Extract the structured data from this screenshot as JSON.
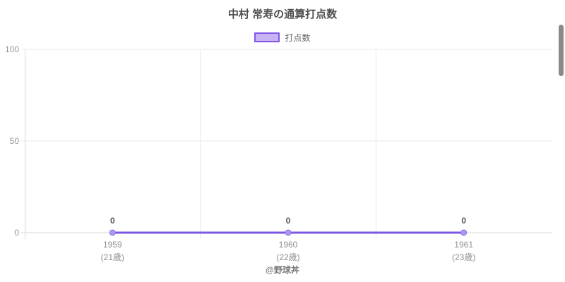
{
  "page": {
    "footer_credit": "@野球丼"
  },
  "chart_data": {
    "type": "line",
    "title": "中村 常寿の通算打点数",
    "categories": [
      "1959",
      "1960",
      "1961"
    ],
    "category_sublabels": [
      "(21歳)",
      "(22歳)",
      "(23歳)"
    ],
    "series": [
      {
        "name": "打点数",
        "values": [
          0,
          0,
          0
        ]
      }
    ],
    "ylim": [
      0,
      100
    ],
    "yticks": [
      0,
      50,
      100
    ],
    "grid": true,
    "legend_position": "top",
    "colors": {
      "line": "#7c57e6",
      "point_fill": "#b097ee",
      "point_border": "#8d6ae9",
      "legend_fill": "#c7b2f4",
      "legend_border": "#8257e5",
      "grid": "#e9e9e9",
      "axis": "#d9d9d9",
      "title_text": "#4d4d4d",
      "axis_text": "#949494",
      "value_text": "#555555",
      "footer_text": "#7a7a7a",
      "scrollbar": "#8a8a8a"
    }
  }
}
